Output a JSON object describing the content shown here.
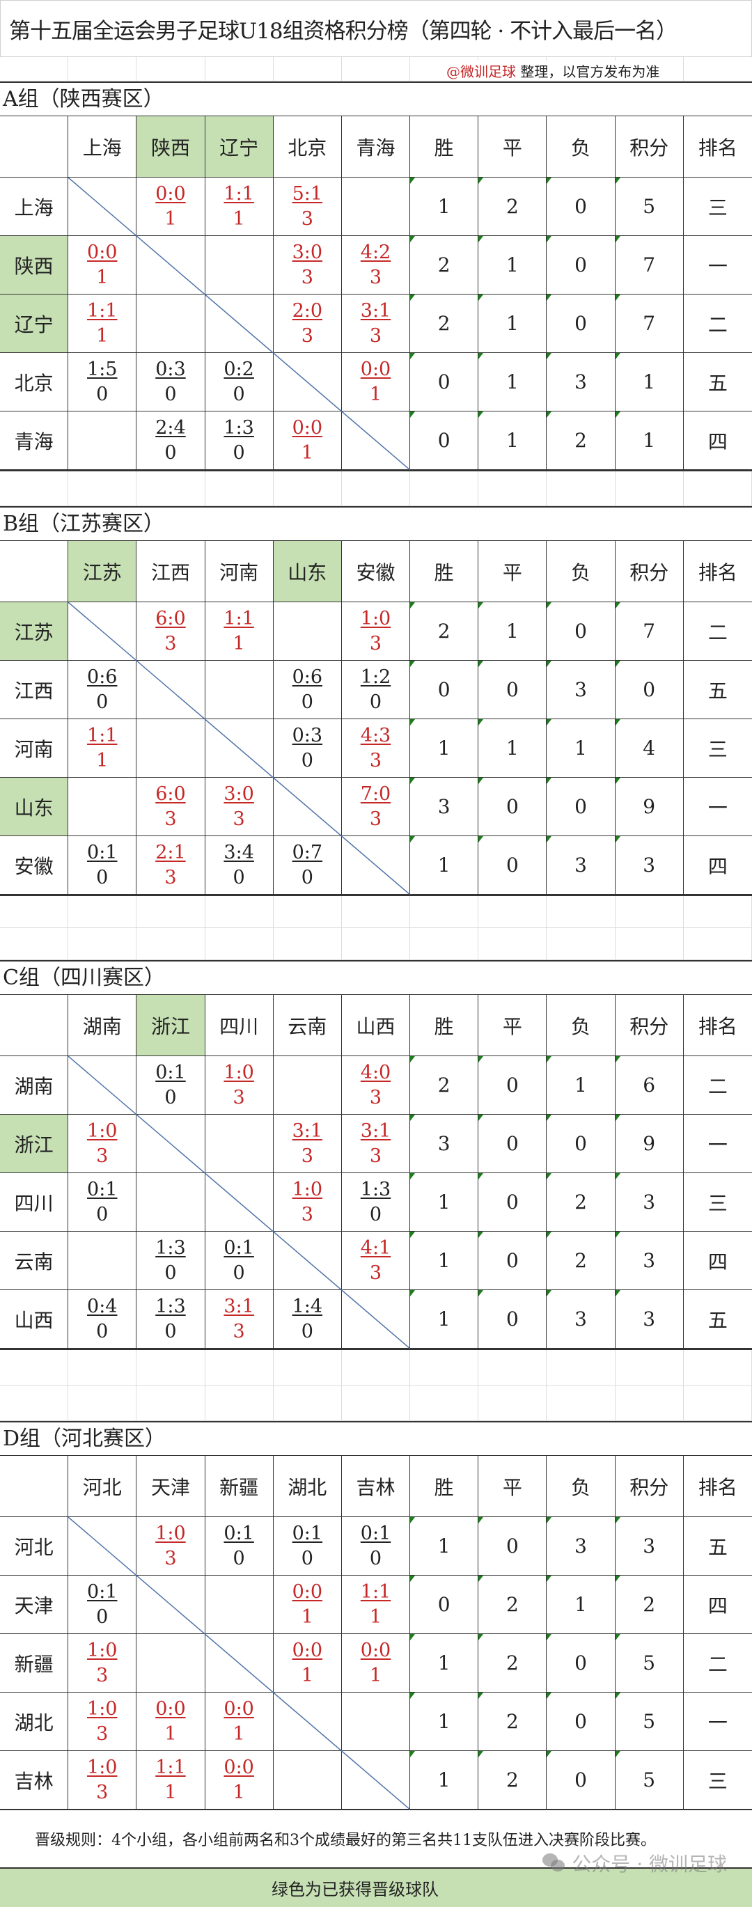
{
  "title": "第十五届全运会男子足球U18组资格积分榜（第四轮 · 不计入最后一名）",
  "note": {
    "handle": "@微训足球",
    "text": " 整理，以官方发布为准"
  },
  "stat_headers": [
    "胜",
    "平",
    "负",
    "积分",
    "排名"
  ],
  "colors": {
    "qualified": "#c6e0b4",
    "win_or_draw_score": "#c62828",
    "loss_score": "#222222",
    "diagonal": "#4f74a8",
    "comment_marker": "#1e7b1e"
  },
  "groups": [
    {
      "label": "A组（陕西赛区）",
      "teams": [
        {
          "name": "上海",
          "qualified": false
        },
        {
          "name": "陕西",
          "qualified": true
        },
        {
          "name": "辽宁",
          "qualified": true
        },
        {
          "name": "北京",
          "qualified": false
        },
        {
          "name": "青海",
          "qualified": false
        }
      ],
      "rows": [
        {
          "cells": [
            null,
            {
              "score": "0:0",
              "pts": "1"
            },
            {
              "score": "1:1",
              "pts": "1"
            },
            {
              "score": "5:1",
              "pts": "3"
            },
            null
          ],
          "stats": [
            "1",
            "2",
            "0",
            "5",
            "三"
          ]
        },
        {
          "cells": [
            {
              "score": "0:0",
              "pts": "1"
            },
            null,
            null,
            {
              "score": "3:0",
              "pts": "3"
            },
            {
              "score": "4:2",
              "pts": "3"
            }
          ],
          "stats": [
            "2",
            "1",
            "0",
            "7",
            "一"
          ]
        },
        {
          "cells": [
            {
              "score": "1:1",
              "pts": "1"
            },
            null,
            null,
            {
              "score": "2:0",
              "pts": "3"
            },
            {
              "score": "3:1",
              "pts": "3"
            }
          ],
          "stats": [
            "2",
            "1",
            "0",
            "7",
            "二"
          ]
        },
        {
          "cells": [
            {
              "score": "1:5",
              "pts": "0"
            },
            {
              "score": "0:3",
              "pts": "0"
            },
            {
              "score": "0:2",
              "pts": "0"
            },
            null,
            {
              "score": "0:0",
              "pts": "1"
            }
          ],
          "stats": [
            "0",
            "1",
            "3",
            "1",
            "五"
          ]
        },
        {
          "cells": [
            null,
            {
              "score": "2:4",
              "pts": "0"
            },
            {
              "score": "1:3",
              "pts": "0"
            },
            {
              "score": "0:0",
              "pts": "1"
            },
            null
          ],
          "stats": [
            "0",
            "1",
            "2",
            "1",
            "四"
          ]
        }
      ]
    },
    {
      "label": "B组（江苏赛区）",
      "teams": [
        {
          "name": "江苏",
          "qualified": true
        },
        {
          "name": "江西",
          "qualified": false
        },
        {
          "name": "河南",
          "qualified": false
        },
        {
          "name": "山东",
          "qualified": true
        },
        {
          "name": "安徽",
          "qualified": false
        }
      ],
      "rows": [
        {
          "cells": [
            null,
            {
              "score": "6:0",
              "pts": "3"
            },
            {
              "score": "1:1",
              "pts": "1"
            },
            null,
            {
              "score": "1:0",
              "pts": "3"
            }
          ],
          "stats": [
            "2",
            "1",
            "0",
            "7",
            "二"
          ]
        },
        {
          "cells": [
            {
              "score": "0:6",
              "pts": "0"
            },
            null,
            null,
            {
              "score": "0:6",
              "pts": "0"
            },
            {
              "score": "1:2",
              "pts": "0"
            }
          ],
          "stats": [
            "0",
            "0",
            "3",
            "0",
            "五"
          ]
        },
        {
          "cells": [
            {
              "score": "1:1",
              "pts": "1"
            },
            null,
            null,
            {
              "score": "0:3",
              "pts": "0"
            },
            {
              "score": "4:3",
              "pts": "3"
            }
          ],
          "stats": [
            "1",
            "1",
            "1",
            "4",
            "三"
          ]
        },
        {
          "cells": [
            null,
            {
              "score": "6:0",
              "pts": "3"
            },
            {
              "score": "3:0",
              "pts": "3"
            },
            null,
            {
              "score": "7:0",
              "pts": "3"
            }
          ],
          "stats": [
            "3",
            "0",
            "0",
            "9",
            "一"
          ]
        },
        {
          "cells": [
            {
              "score": "0:1",
              "pts": "0"
            },
            {
              "score": "2:1",
              "pts": "3"
            },
            {
              "score": "3:4",
              "pts": "0"
            },
            {
              "score": "0:7",
              "pts": "0"
            },
            null
          ],
          "stats": [
            "1",
            "0",
            "3",
            "3",
            "四"
          ]
        }
      ]
    },
    {
      "label": "C组（四川赛区）",
      "teams": [
        {
          "name": "湖南",
          "qualified": false
        },
        {
          "name": "浙江",
          "qualified": true
        },
        {
          "name": "四川",
          "qualified": false
        },
        {
          "name": "云南",
          "qualified": false
        },
        {
          "name": "山西",
          "qualified": false
        }
      ],
      "rows": [
        {
          "cells": [
            null,
            {
              "score": "0:1",
              "pts": "0"
            },
            {
              "score": "1:0",
              "pts": "3"
            },
            null,
            {
              "score": "4:0",
              "pts": "3"
            }
          ],
          "stats": [
            "2",
            "0",
            "1",
            "6",
            "二"
          ]
        },
        {
          "cells": [
            {
              "score": "1:0",
              "pts": "3"
            },
            null,
            null,
            {
              "score": "3:1",
              "pts": "3"
            },
            {
              "score": "3:1",
              "pts": "3"
            }
          ],
          "stats": [
            "3",
            "0",
            "0",
            "9",
            "一"
          ]
        },
        {
          "cells": [
            {
              "score": "0:1",
              "pts": "0"
            },
            null,
            null,
            {
              "score": "1:0",
              "pts": "3"
            },
            {
              "score": "1:3",
              "pts": "0"
            }
          ],
          "stats": [
            "1",
            "0",
            "2",
            "3",
            "三"
          ]
        },
        {
          "cells": [
            null,
            {
              "score": "1:3",
              "pts": "0"
            },
            {
              "score": "0:1",
              "pts": "0"
            },
            null,
            {
              "score": "4:1",
              "pts": "3"
            }
          ],
          "stats": [
            "1",
            "0",
            "2",
            "3",
            "四"
          ]
        },
        {
          "cells": [
            {
              "score": "0:4",
              "pts": "0"
            },
            {
              "score": "1:3",
              "pts": "0"
            },
            {
              "score": "3:1",
              "pts": "3"
            },
            {
              "score": "1:4",
              "pts": "0"
            },
            null
          ],
          "stats": [
            "1",
            "0",
            "3",
            "3",
            "五"
          ]
        }
      ]
    },
    {
      "label": "D组（河北赛区）",
      "teams": [
        {
          "name": "河北",
          "qualified": false
        },
        {
          "name": "天津",
          "qualified": false
        },
        {
          "name": "新疆",
          "qualified": false
        },
        {
          "name": "湖北",
          "qualified": false
        },
        {
          "name": "吉林",
          "qualified": false
        }
      ],
      "rows": [
        {
          "cells": [
            null,
            {
              "score": "1:0",
              "pts": "3"
            },
            {
              "score": "0:1",
              "pts": "0"
            },
            {
              "score": "0:1",
              "pts": "0"
            },
            {
              "score": "0:1",
              "pts": "0"
            }
          ],
          "stats": [
            "1",
            "0",
            "3",
            "3",
            "五"
          ]
        },
        {
          "cells": [
            {
              "score": "0:1",
              "pts": "0"
            },
            null,
            null,
            {
              "score": "0:0",
              "pts": "1"
            },
            {
              "score": "1:1",
              "pts": "1"
            }
          ],
          "stats": [
            "0",
            "2",
            "1",
            "2",
            "四"
          ]
        },
        {
          "cells": [
            {
              "score": "1:0",
              "pts": "3"
            },
            null,
            null,
            {
              "score": "0:0",
              "pts": "1"
            },
            {
              "score": "0:0",
              "pts": "1"
            }
          ],
          "stats": [
            "1",
            "2",
            "0",
            "5",
            "二"
          ]
        },
        {
          "cells": [
            {
              "score": "1:0",
              "pts": "3"
            },
            {
              "score": "0:0",
              "pts": "1"
            },
            {
              "score": "0:0",
              "pts": "1"
            },
            null,
            null
          ],
          "stats": [
            "1",
            "2",
            "0",
            "5",
            "一"
          ]
        },
        {
          "cells": [
            {
              "score": "1:0",
              "pts": "3"
            },
            {
              "score": "1:1",
              "pts": "1"
            },
            {
              "score": "0:0",
              "pts": "1"
            },
            null,
            null
          ],
          "stats": [
            "1",
            "2",
            "0",
            "5",
            "三"
          ]
        }
      ]
    }
  ],
  "rule": "晋级规则：4个小组，各小组前两名和3个成绩最好的第三名共11支队伍进入决赛阶段比赛。",
  "footer": "绿色为已获得晋级球队",
  "watermark": "公众号 · 微训足球"
}
